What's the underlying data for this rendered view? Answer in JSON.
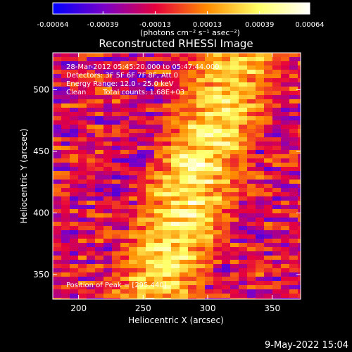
{
  "colorbar": {
    "tick_labels": [
      "-0.00064",
      "-0.00039",
      "-0.00013",
      "0.00013",
      "0.00039",
      "0.00064"
    ],
    "tick_values": [
      -0.00064,
      -0.00039,
      -0.00013,
      0.00013,
      0.00039,
      0.00064
    ],
    "range": [
      -0.00064,
      0.00064
    ],
    "units_label": "(photons cm⁻² s⁻¹ asec⁻²)",
    "colors": [
      "#0000ff",
      "#7a00c8",
      "#e6003c",
      "#ff8c00",
      "#ffff66",
      "#ffffff"
    ]
  },
  "chart_data": {
    "type": "heatmap",
    "title": "Reconstructed RHESSI Image",
    "xlabel": "Heliocentric X (arcsec)",
    "ylabel": "Heliocentric Y (arcsec)",
    "xlim": [
      180,
      372
    ],
    "ylim": [
      330,
      530
    ],
    "x_ticks": [
      200,
      250,
      300,
      350
    ],
    "y_ticks": [
      350,
      400,
      450,
      500
    ],
    "x_tick_labels": [
      "200",
      "250",
      "300",
      "350"
    ],
    "y_tick_labels": [
      "350",
      "400",
      "450",
      "500"
    ],
    "peak": [
      295,
      440
    ],
    "annotations": {
      "time_range": "28-Mar-2012 05:45:20.000 to 05:47:44.000",
      "detectors": "Detectors: 3F 5F 6F 7F 8F, Att 0",
      "energy_range": "Energy Range: 12.0 - 25.0 keV",
      "method": "Clean",
      "total_counts": "Total counts: 1.68E+03",
      "peak_position": "Position of Peak = [295,440]"
    }
  },
  "footer": {
    "date": "9-May-2022 15:04"
  }
}
